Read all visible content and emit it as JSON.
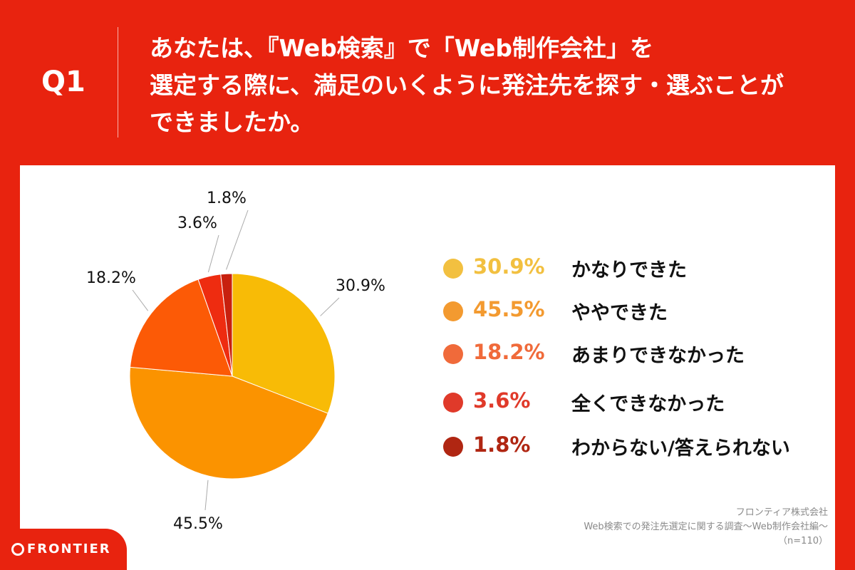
{
  "header": {
    "q_label": "Q1",
    "question_lines": [
      "あなたは、『Web検索』で「Web制作会社」を",
      "選定する際に、満足のいくように発注先を探す・選ぶことが",
      "できましたか。"
    ]
  },
  "colors": {
    "background": "#e8230f",
    "panel": "#ffffff"
  },
  "chart_data": {
    "type": "pie",
    "categories": [
      "かなりできた",
      "ややできた",
      "あまりできなかった",
      "全くできなかった",
      "わからない/答えられない"
    ],
    "values": [
      30.9,
      45.5,
      18.2,
      3.6,
      1.8
    ],
    "value_labels": [
      "30.9%",
      "45.5%",
      "18.2%",
      "3.6%",
      "1.8%"
    ],
    "colors": [
      "#f8bb06",
      "#fb9300",
      "#fc5a06",
      "#ee2c10",
      "#c8200e"
    ],
    "legend_colors": [
      "#f2c040",
      "#f39a30",
      "#f06a3a",
      "#e03a2a",
      "#b02612"
    ],
    "start": "12 o'clock",
    "direction": "clockwise",
    "legend": "right"
  },
  "source": {
    "company": "フロンティア株式会社",
    "survey": "Web検索での発注先選定に関する調査〜Web制作会社編〜",
    "sample": "（n=110）"
  },
  "logo": {
    "text": "FRONTIER"
  }
}
